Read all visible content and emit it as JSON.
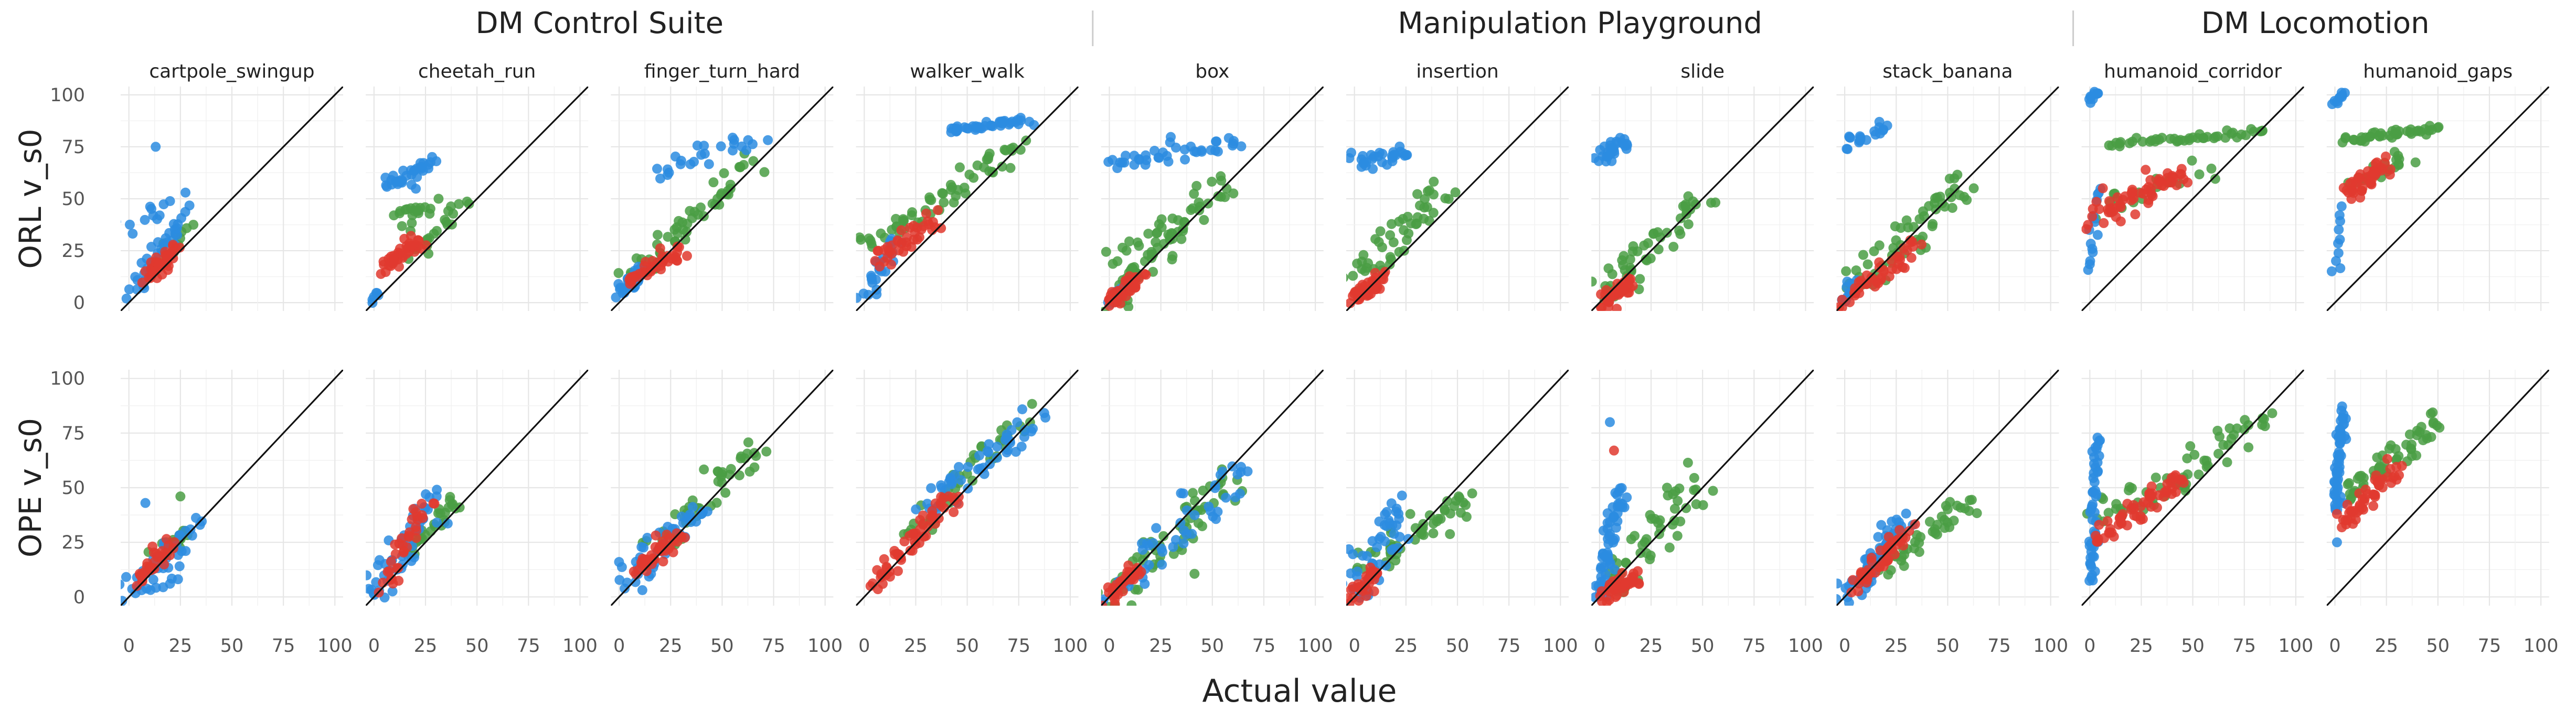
{
  "chart_data": {
    "type": "scatter",
    "xlabel": "Actual value",
    "xlim": [
      0,
      100
    ],
    "ylim": [
      0,
      100
    ],
    "x_ticks": [
      0,
      25,
      50,
      75,
      100
    ],
    "y_ticks": [
      0,
      25,
      50,
      75,
      100
    ],
    "grid": true,
    "diagonal": "y = x",
    "groups": [
      {
        "name": "DM Control Suite",
        "facets": [
          "cartpole_swingup",
          "cheetah_run",
          "finger_turn_hard",
          "walker_walk"
        ]
      },
      {
        "name": "Manipulation Playground",
        "facets": [
          "box",
          "insertion",
          "slide",
          "stack_banana"
        ]
      },
      {
        "name": "DM Locomotion",
        "facets": [
          "humanoid_corridor",
          "humanoid_gaps"
        ]
      }
    ],
    "rows": [
      "ORL v_s0",
      "OPE v_s0"
    ],
    "series_colors": {
      "blue": "#2b8ce0",
      "red": "#e0392f",
      "green": "#4a9e44"
    },
    "clusters": [
      {
        "facet": 0,
        "row": 0,
        "series": "blue",
        "x": [
          2,
          26
        ],
        "y": [
          5,
          40
        ],
        "n": 35,
        "spread": 2
      },
      {
        "facet": 0,
        "row": 0,
        "series": "blue",
        "x": [
          1,
          25
        ],
        "y": [
          38,
          52
        ],
        "n": 14,
        "spread": 3
      },
      {
        "facet": 0,
        "row": 0,
        "series": "blue",
        "x": [
          13,
          13
        ],
        "y": [
          75,
          75
        ],
        "n": 1,
        "spread": 0
      },
      {
        "facet": 0,
        "row": 0,
        "series": "red",
        "x": [
          10,
          22
        ],
        "y": [
          12,
          26
        ],
        "n": 40,
        "spread": 2
      },
      {
        "facet": 0,
        "row": 0,
        "series": "green",
        "x": [
          15,
          28
        ],
        "y": [
          18,
          35
        ],
        "n": 15,
        "spread": 2
      },
      {
        "facet": 1,
        "row": 0,
        "series": "blue",
        "x": [
          0,
          2
        ],
        "y": [
          0,
          5
        ],
        "n": 6,
        "spread": 1
      },
      {
        "facet": 1,
        "row": 0,
        "series": "blue",
        "x": [
          5,
          30
        ],
        "y": [
          57,
          67
        ],
        "n": 35,
        "spread": 2
      },
      {
        "facet": 1,
        "row": 0,
        "series": "red",
        "x": [
          5,
          22
        ],
        "y": [
          16,
          30
        ],
        "n": 40,
        "spread": 2
      },
      {
        "facet": 1,
        "row": 0,
        "series": "green",
        "x": [
          10,
          28
        ],
        "y": [
          38,
          48
        ],
        "n": 20,
        "spread": 3
      },
      {
        "facet": 1,
        "row": 0,
        "series": "green",
        "x": [
          18,
          45
        ],
        "y": [
          24,
          48
        ],
        "n": 20,
        "spread": 2
      },
      {
        "facet": 2,
        "row": 0,
        "series": "blue",
        "x": [
          1,
          10
        ],
        "y": [
          5,
          15
        ],
        "n": 35,
        "spread": 2
      },
      {
        "facet": 2,
        "row": 0,
        "series": "blue",
        "x": [
          20,
          68
        ],
        "y": [
          60,
          80
        ],
        "n": 25,
        "spread": 3
      },
      {
        "facet": 2,
        "row": 0,
        "series": "red",
        "x": [
          5,
          30
        ],
        "y": [
          10,
          25
        ],
        "n": 40,
        "spread": 2
      },
      {
        "facet": 2,
        "row": 0,
        "series": "green",
        "x": [
          3,
          65
        ],
        "y": [
          10,
          67
        ],
        "n": 55,
        "spread": 3
      },
      {
        "facet": 3,
        "row": 0,
        "series": "blue",
        "x": [
          1,
          15
        ],
        "y": [
          4,
          30
        ],
        "n": 25,
        "spread": 2
      },
      {
        "facet": 3,
        "row": 0,
        "series": "blue",
        "x": [
          40,
          80
        ],
        "y": [
          83,
          88
        ],
        "n": 40,
        "spread": 1
      },
      {
        "facet": 3,
        "row": 0,
        "series": "red",
        "x": [
          5,
          35
        ],
        "y": [
          20,
          40
        ],
        "n": 40,
        "spread": 3
      },
      {
        "facet": 3,
        "row": 0,
        "series": "green",
        "x": [
          2,
          75
        ],
        "y": [
          25,
          76
        ],
        "n": 60,
        "spread": 3
      },
      {
        "facet": 4,
        "row": 0,
        "series": "blue",
        "x": [
          0,
          62
        ],
        "y": [
          66,
          76
        ],
        "n": 40,
        "spread": 2
      },
      {
        "facet": 4,
        "row": 0,
        "series": "blue",
        "x": [
          0,
          6
        ],
        "y": [
          0,
          6
        ],
        "n": 10,
        "spread": 1
      },
      {
        "facet": 4,
        "row": 0,
        "series": "red",
        "x": [
          0,
          15
        ],
        "y": [
          0,
          12
        ],
        "n": 40,
        "spread": 2
      },
      {
        "facet": 4,
        "row": 0,
        "series": "green",
        "x": [
          0,
          55
        ],
        "y": [
          0,
          58
        ],
        "n": 60,
        "spread": 3
      },
      {
        "facet": 4,
        "row": 0,
        "series": "green",
        "x": [
          0,
          30
        ],
        "y": [
          20,
          40
        ],
        "n": 15,
        "spread": 2
      },
      {
        "facet": 5,
        "row": 0,
        "series": "blue",
        "x": [
          0,
          25
        ],
        "y": [
          67,
          73
        ],
        "n": 30,
        "spread": 2
      },
      {
        "facet": 5,
        "row": 0,
        "series": "red",
        "x": [
          0,
          12
        ],
        "y": [
          0,
          12
        ],
        "n": 40,
        "spread": 2
      },
      {
        "facet": 5,
        "row": 0,
        "series": "green",
        "x": [
          1,
          40
        ],
        "y": [
          10,
          55
        ],
        "n": 50,
        "spread": 4
      },
      {
        "facet": 6,
        "row": 0,
        "series": "blue",
        "x": [
          0,
          12
        ],
        "y": [
          70,
          78
        ],
        "n": 30,
        "spread": 2
      },
      {
        "facet": 6,
        "row": 0,
        "series": "red",
        "x": [
          3,
          15
        ],
        "y": [
          0,
          10
        ],
        "n": 40,
        "spread": 2
      },
      {
        "facet": 6,
        "row": 0,
        "series": "green",
        "x": [
          0,
          50
        ],
        "y": [
          5,
          50
        ],
        "n": 50,
        "spread": 4
      },
      {
        "facet": 7,
        "row": 0,
        "series": "blue",
        "x": [
          0,
          20
        ],
        "y": [
          76,
          84
        ],
        "n": 20,
        "spread": 2
      },
      {
        "facet": 7,
        "row": 0,
        "series": "blue",
        "x": [
          0,
          3
        ],
        "y": [
          0,
          10
        ],
        "n": 10,
        "spread": 1
      },
      {
        "facet": 7,
        "row": 0,
        "series": "red",
        "x": [
          0,
          35
        ],
        "y": [
          0,
          28
        ],
        "n": 45,
        "spread": 2
      },
      {
        "facet": 7,
        "row": 0,
        "series": "green",
        "x": [
          0,
          62
        ],
        "y": [
          5,
          60
        ],
        "n": 60,
        "spread": 4
      },
      {
        "facet": 8,
        "row": 0,
        "series": "blue",
        "x": [
          0,
          4
        ],
        "y": [
          98,
          101
        ],
        "n": 10,
        "spread": 1
      },
      {
        "facet": 8,
        "row": 0,
        "series": "blue",
        "x": [
          0,
          4
        ],
        "y": [
          15,
          55
        ],
        "n": 15,
        "spread": 1
      },
      {
        "facet": 8,
        "row": 0,
        "series": "red",
        "x": [
          2,
          45
        ],
        "y": [
          42,
          62
        ],
        "n": 60,
        "spread": 3
      },
      {
        "facet": 8,
        "row": 0,
        "series": "green",
        "x": [
          10,
          85
        ],
        "y": [
          76,
          82
        ],
        "n": 45,
        "spread": 1
      },
      {
        "facet": 8,
        "row": 0,
        "series": "green",
        "x": [
          5,
          55
        ],
        "y": [
          45,
          65
        ],
        "n": 20,
        "spread": 3
      },
      {
        "facet": 9,
        "row": 0,
        "series": "blue",
        "x": [
          0,
          4
        ],
        "y": [
          96,
          101
        ],
        "n": 10,
        "spread": 1
      },
      {
        "facet": 9,
        "row": 0,
        "series": "blue",
        "x": [
          0,
          3
        ],
        "y": [
          15,
          45
        ],
        "n": 10,
        "spread": 1
      },
      {
        "facet": 9,
        "row": 0,
        "series": "red",
        "x": [
          5,
          25
        ],
        "y": [
          52,
          66
        ],
        "n": 45,
        "spread": 2
      },
      {
        "facet": 9,
        "row": 0,
        "series": "green",
        "x": [
          5,
          50
        ],
        "y": [
          78,
          84
        ],
        "n": 40,
        "spread": 1
      },
      {
        "facet": 9,
        "row": 0,
        "series": "green",
        "x": [
          10,
          35
        ],
        "y": [
          58,
          70
        ],
        "n": 20,
        "spread": 2
      },
      {
        "facet": 0,
        "row": 1,
        "series": "blue",
        "x": [
          0,
          30
        ],
        "y": [
          0,
          32
        ],
        "n": 35,
        "spread": 3
      },
      {
        "facet": 0,
        "row": 1,
        "series": "blue",
        "x": [
          10,
          25
        ],
        "y": [
          2,
          8
        ],
        "n": 6,
        "spread": 1
      },
      {
        "facet": 0,
        "row": 1,
        "series": "blue",
        "x": [
          8,
          8
        ],
        "y": [
          43,
          43
        ],
        "n": 1,
        "spread": 0
      },
      {
        "facet": 0,
        "row": 1,
        "series": "red",
        "x": [
          5,
          20
        ],
        "y": [
          8,
          24
        ],
        "n": 30,
        "spread": 2
      },
      {
        "facet": 0,
        "row": 1,
        "series": "green",
        "x": [
          15,
          28
        ],
        "y": [
          20,
          30
        ],
        "n": 20,
        "spread": 2
      },
      {
        "facet": 0,
        "row": 1,
        "series": "green",
        "x": [
          25,
          25
        ],
        "y": [
          46,
          46
        ],
        "n": 1,
        "spread": 0
      },
      {
        "facet": 1,
        "row": 1,
        "series": "blue",
        "x": [
          0,
          30
        ],
        "y": [
          0,
          45
        ],
        "n": 50,
        "spread": 3
      },
      {
        "facet": 1,
        "row": 1,
        "series": "red",
        "x": [
          5,
          25
        ],
        "y": [
          5,
          44
        ],
        "n": 35,
        "spread": 2
      },
      {
        "facet": 1,
        "row": 1,
        "series": "green",
        "x": [
          15,
          43
        ],
        "y": [
          20,
          45
        ],
        "n": 30,
        "spread": 2
      },
      {
        "facet": 2,
        "row": 1,
        "series": "blue",
        "x": [
          2,
          40
        ],
        "y": [
          5,
          42
        ],
        "n": 40,
        "spread": 3
      },
      {
        "facet": 2,
        "row": 1,
        "series": "red",
        "x": [
          8,
          30
        ],
        "y": [
          12,
          28
        ],
        "n": 40,
        "spread": 2
      },
      {
        "facet": 2,
        "row": 1,
        "series": "green",
        "x": [
          15,
          68
        ],
        "y": [
          20,
          70
        ],
        "n": 50,
        "spread": 3
      },
      {
        "facet": 3,
        "row": 1,
        "series": "blue",
        "x": [
          30,
          82
        ],
        "y": [
          40,
          82
        ],
        "n": 50,
        "spread": 3
      },
      {
        "facet": 3,
        "row": 1,
        "series": "red",
        "x": [
          5,
          45
        ],
        "y": [
          5,
          48
        ],
        "n": 60,
        "spread": 2
      },
      {
        "facet": 3,
        "row": 1,
        "series": "green",
        "x": [
          20,
          78
        ],
        "y": [
          28,
          80
        ],
        "n": 40,
        "spread": 3
      },
      {
        "facet": 4,
        "row": 1,
        "series": "blue",
        "x": [
          0,
          65
        ],
        "y": [
          0,
          60
        ],
        "n": 50,
        "spread": 4
      },
      {
        "facet": 4,
        "row": 1,
        "series": "red",
        "x": [
          0,
          15
        ],
        "y": [
          0,
          14
        ],
        "n": 35,
        "spread": 2
      },
      {
        "facet": 4,
        "row": 1,
        "series": "green",
        "x": [
          0,
          62
        ],
        "y": [
          0,
          55
        ],
        "n": 60,
        "spread": 4
      },
      {
        "facet": 5,
        "row": 1,
        "series": "blue",
        "x": [
          0,
          25
        ],
        "y": [
          0,
          45
        ],
        "n": 50,
        "spread": 4
      },
      {
        "facet": 5,
        "row": 1,
        "series": "red",
        "x": [
          0,
          10
        ],
        "y": [
          0,
          12
        ],
        "n": 30,
        "spread": 2
      },
      {
        "facet": 5,
        "row": 1,
        "series": "green",
        "x": [
          5,
          55
        ],
        "y": [
          10,
          48
        ],
        "n": 50,
        "spread": 4
      },
      {
        "facet": 6,
        "row": 1,
        "series": "blue",
        "x": [
          0,
          10
        ],
        "y": [
          0,
          50
        ],
        "n": 60,
        "spread": 2
      },
      {
        "facet": 6,
        "row": 1,
        "series": "blue",
        "x": [
          5,
          5
        ],
        "y": [
          80,
          80
        ],
        "n": 1,
        "spread": 0
      },
      {
        "facet": 6,
        "row": 1,
        "series": "red",
        "x": [
          3,
          18
        ],
        "y": [
          0,
          10
        ],
        "n": 40,
        "spread": 2
      },
      {
        "facet": 6,
        "row": 1,
        "series": "red",
        "x": [
          7,
          7
        ],
        "y": [
          67,
          67
        ],
        "n": 1,
        "spread": 0
      },
      {
        "facet": 6,
        "row": 1,
        "series": "green",
        "x": [
          5,
          50
        ],
        "y": [
          5,
          52
        ],
        "n": 50,
        "spread": 4
      },
      {
        "facet": 7,
        "row": 1,
        "series": "blue",
        "x": [
          0,
          30
        ],
        "y": [
          0,
          35
        ],
        "n": 60,
        "spread": 3
      },
      {
        "facet": 7,
        "row": 1,
        "series": "red",
        "x": [
          5,
          30
        ],
        "y": [
          5,
          30
        ],
        "n": 50,
        "spread": 2
      },
      {
        "facet": 7,
        "row": 1,
        "series": "green",
        "x": [
          10,
          62
        ],
        "y": [
          10,
          45
        ],
        "n": 50,
        "spread": 3
      },
      {
        "facet": 8,
        "row": 1,
        "series": "blue",
        "x": [
          0,
          4
        ],
        "y": [
          5,
          75
        ],
        "n": 50,
        "spread": 1
      },
      {
        "facet": 8,
        "row": 1,
        "series": "red",
        "x": [
          5,
          45
        ],
        "y": [
          28,
          55
        ],
        "n": 60,
        "spread": 2
      },
      {
        "facet": 8,
        "row": 1,
        "series": "green",
        "x": [
          5,
          85
        ],
        "y": [
          35,
          80
        ],
        "n": 60,
        "spread": 3
      },
      {
        "facet": 9,
        "row": 1,
        "series": "blue",
        "x": [
          0,
          4
        ],
        "y": [
          40,
          85
        ],
        "n": 55,
        "spread": 1
      },
      {
        "facet": 9,
        "row": 1,
        "series": "blue",
        "x": [
          1,
          1
        ],
        "y": [
          25,
          25
        ],
        "n": 1,
        "spread": 0
      },
      {
        "facet": 9,
        "row": 1,
        "series": "red",
        "x": [
          2,
          30
        ],
        "y": [
          32,
          60
        ],
        "n": 50,
        "spread": 2
      },
      {
        "facet": 9,
        "row": 1,
        "series": "green",
        "x": [
          5,
          50
        ],
        "y": [
          45,
          82
        ],
        "n": 55,
        "spread": 3
      }
    ]
  }
}
